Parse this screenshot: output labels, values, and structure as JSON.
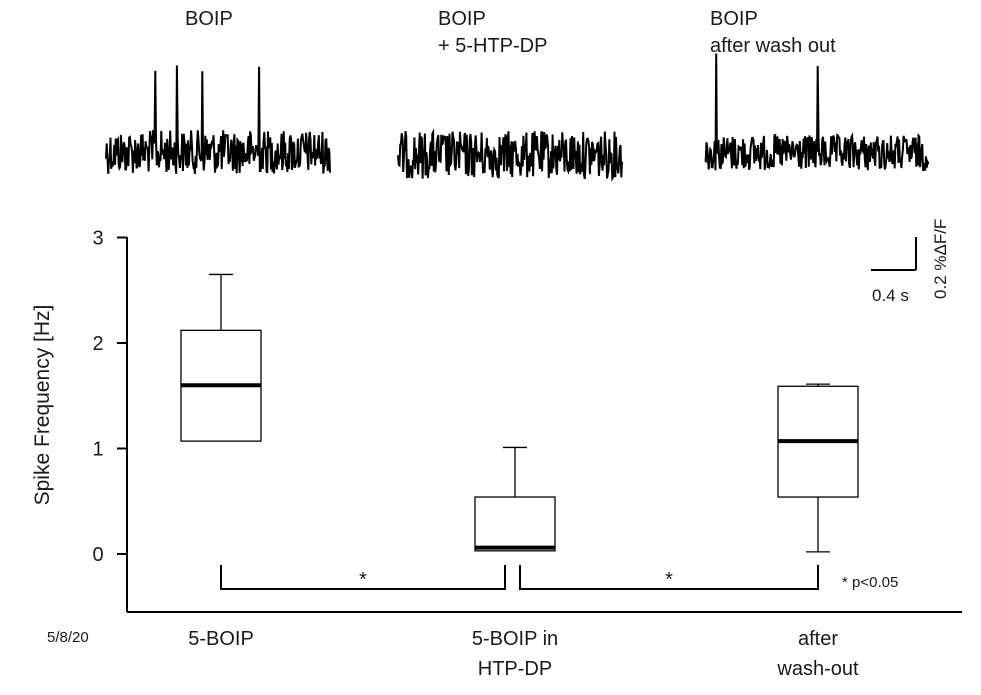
{
  "chart_data": {
    "type": "box",
    "ylabel": "Spike Frequency [Hz]",
    "ylim": [
      -0.55,
      3
    ],
    "yticks": [
      0,
      1,
      2,
      3
    ],
    "categories": [
      "5-BOIP",
      "5-BOIP in\nHTP-DP",
      "after\nwash-out"
    ],
    "boxes": [
      {
        "whisker_low": 1.07,
        "q1": 1.07,
        "median": 1.6,
        "q3": 2.12,
        "whisker_high": 2.65
      },
      {
        "whisker_low": 0.03,
        "q1": 0.03,
        "median": 0.06,
        "q3": 0.54,
        "whisker_high": 1.01
      },
      {
        "whisker_low": 0.02,
        "q1": 0.54,
        "median": 1.07,
        "q3": 1.59,
        "whisker_high": 1.61
      }
    ],
    "significance": [
      {
        "from": 0,
        "to": 1,
        "label": "*"
      },
      {
        "from": 1,
        "to": 2,
        "label": "*"
      }
    ],
    "significance_note": "* p<0.05",
    "traces": [
      {
        "title": "BOIP",
        "spikes": 4
      },
      {
        "title": "BOIP\n+ 5-HTP-DP",
        "spikes": 0
      },
      {
        "title": "BOIP\nafter wash out",
        "spikes": 2
      }
    ],
    "scale_bar": {
      "time_label": "0.4 s",
      "amp_label": "0.2 %ΔF/F"
    }
  },
  "date_stamp": "5/8/20"
}
